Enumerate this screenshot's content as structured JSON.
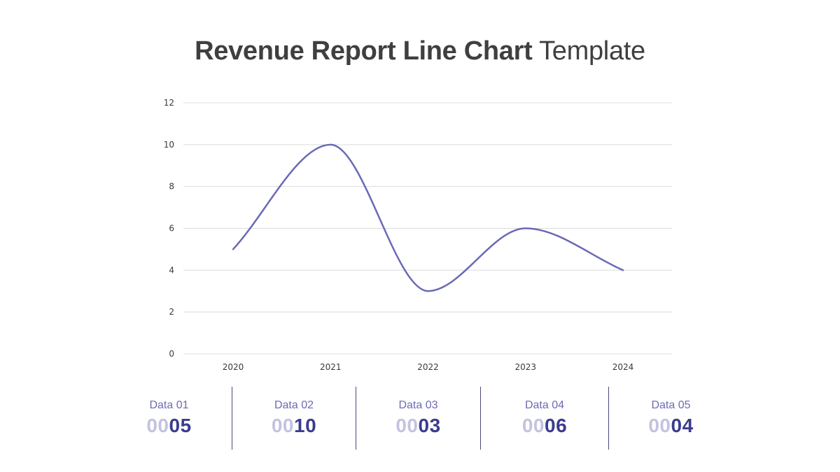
{
  "header": {
    "title_bold": "Revenue Report Line Chart",
    "title_light": "Template"
  },
  "chart_data": {
    "type": "line",
    "x": [
      "2020",
      "2021",
      "2022",
      "2023",
      "2024"
    ],
    "series": [
      {
        "values": [
          5,
          10,
          3,
          6,
          4
        ]
      }
    ],
    "title": "",
    "xlabel": "",
    "ylabel": "",
    "ylim": [
      0,
      12
    ],
    "yticks": [
      "0",
      "2",
      "4",
      "6",
      "8",
      "10",
      "12"
    ],
    "grid": true,
    "smooth": true,
    "line_color": "#6a6ab6"
  },
  "stats": [
    {
      "label": "Data 01",
      "pad": "00",
      "value": "05"
    },
    {
      "label": "Data 02",
      "pad": "00",
      "value": "10"
    },
    {
      "label": "Data 03",
      "pad": "00",
      "value": "03"
    },
    {
      "label": "Data 04",
      "pad": "00",
      "value": "06"
    },
    {
      "label": "Data 05",
      "pad": "00",
      "value": "04"
    }
  ],
  "colors": {
    "accent": "#3b3b8f",
    "accent_light": "#c3c3e0",
    "label": "#6b6bb5"
  }
}
